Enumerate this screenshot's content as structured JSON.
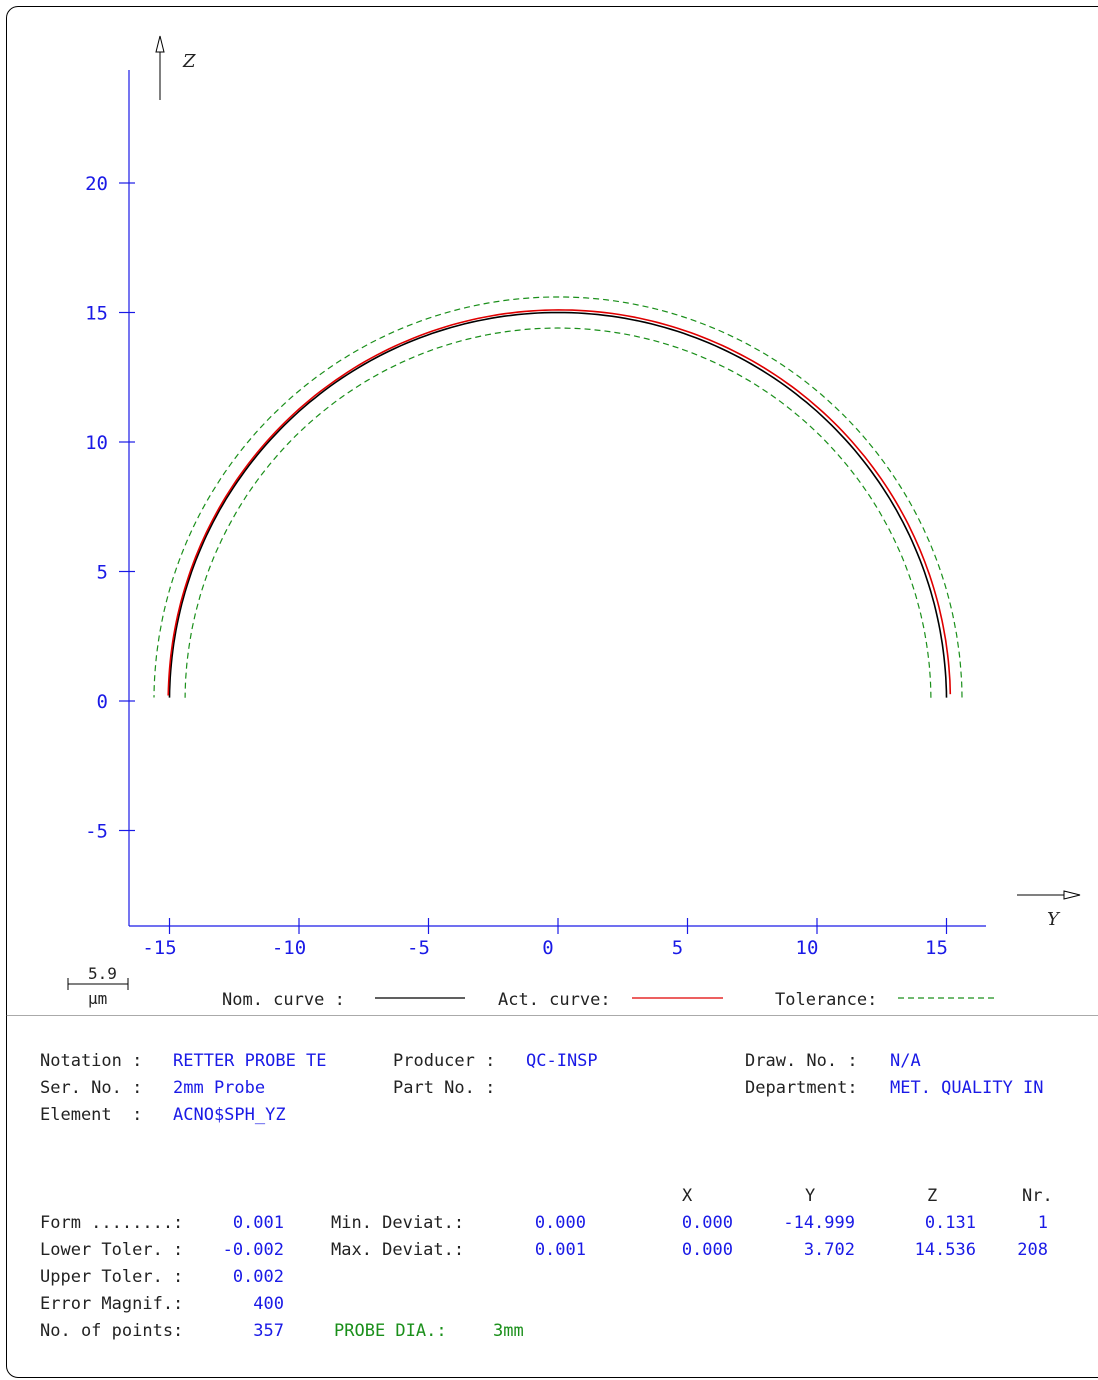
{
  "chart_data": {
    "type": "line",
    "axes": {
      "xlabel": "Y",
      "ylabel": "Z",
      "xlim": [
        -16.5,
        16.5
      ],
      "ylim": [
        -8.7,
        24.5
      ]
    },
    "x_ticks": [
      -15,
      -10,
      -5,
      0,
      5,
      10,
      15
    ],
    "y_ticks": [
      -5,
      0,
      5,
      10,
      15,
      20
    ],
    "series": [
      {
        "name": "Nom. curve",
        "color": "#000000",
        "style": "solid",
        "center": [
          0.0,
          0.0
        ],
        "radius": 15.0,
        "angle_range_deg": [
          0.5,
          179.5
        ]
      },
      {
        "name": "Act. curve",
        "color": "#e00000",
        "style": "solid",
        "center": [
          0.05,
          0.0
        ],
        "radius": 15.1,
        "angle_range_deg": [
          1.0,
          179.2
        ]
      },
      {
        "name": "Tolerance",
        "color": "#1a8f1a",
        "style": "dashed",
        "center": [
          0.0,
          0.0
        ],
        "radius": 15.6,
        "angle_range_deg": [
          0.5,
          179.5
        ]
      },
      {
        "name": "Tolerance",
        "color": "#1a8f1a",
        "style": "dashed",
        "center": [
          0.0,
          0.0
        ],
        "radius": 14.4,
        "angle_range_deg": [
          0.5,
          179.5
        ]
      }
    ],
    "scale_bar": {
      "value": "5.9",
      "unit": "µm"
    }
  },
  "legend": {
    "nom_label": "Nom. curve :",
    "act_label": "Act. curve:",
    "tol_label": "Tolerance:"
  },
  "info": {
    "notation_label": "Notation :",
    "notation_value": "RETTER PROBE TE",
    "serno_label": "Ser. No. :",
    "serno_value": "2mm Probe",
    "element_label": "Element  :",
    "element_value": "ACNO$SPH_YZ",
    "producer_label": "Producer :",
    "producer_value": "QC-INSP",
    "partno_label": "Part No. :",
    "drawno_label": "Draw. No. :",
    "drawno_value": "N/A",
    "department_label": "Department:",
    "department_value": "MET. QUALITY IN"
  },
  "results": {
    "col_x": "X",
    "col_y": "Y",
    "col_z": "Z",
    "col_nr": "Nr.",
    "form_label": "Form ........:",
    "form_value": "0.001",
    "lower_label": "Lower Toler. :",
    "lower_value": "-0.002",
    "upper_label": "Upper Toler. :",
    "upper_value": "0.002",
    "magnif_label": "Error Magnif.:",
    "magnif_value": "400",
    "points_label": "No. of points:",
    "points_value": "357",
    "probe_label": "PROBE DIA.:",
    "probe_value": "3mm",
    "min_label": "Min. Deviat.:",
    "min_value": "0.000",
    "max_label": "Max. Deviat.:",
    "max_value": "0.001",
    "min_x": "0.000",
    "min_y": "-14.999",
    "min_z": "0.131",
    "min_nr": "1",
    "max_x": "0.000",
    "max_y": "3.702",
    "max_z": "14.536",
    "max_nr": "208"
  }
}
